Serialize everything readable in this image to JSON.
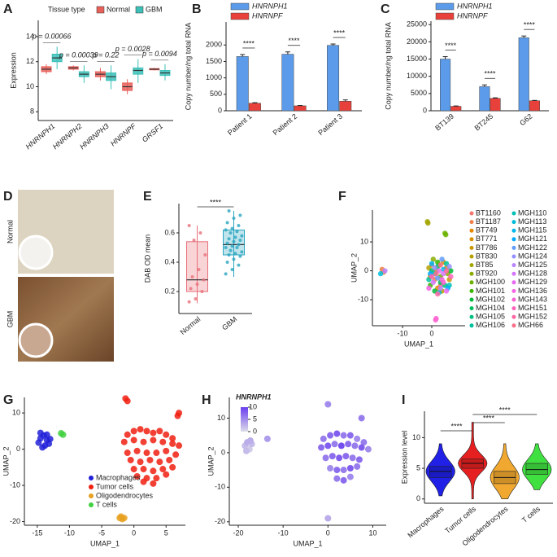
{
  "chart_data": [
    {
      "type": "box",
      "panel": "A",
      "legend_title": "Tissue type",
      "ylabel": "Expression",
      "categories": [
        "HNRNPH1",
        "HNRNPH2",
        "HNRNPH3",
        "HNRNPF",
        "GRSF1"
      ],
      "ylim": [
        7.3,
        15.3
      ],
      "yticks": [
        8,
        10,
        12,
        14
      ],
      "series": [
        {
          "name": "Normal",
          "color": "#e8605a",
          "whisker_low": [
            11.0,
            11.3,
            10.5,
            9.4,
            11.3
          ],
          "q1": [
            11.2,
            11.4,
            10.8,
            9.7,
            11.35
          ],
          "median": [
            11.4,
            11.5,
            11.0,
            10.0,
            11.4
          ],
          "q3": [
            11.6,
            11.6,
            11.2,
            10.3,
            11.45
          ],
          "whisker_high": [
            11.8,
            11.7,
            11.5,
            10.6,
            11.5
          ]
        },
        {
          "name": "GBM",
          "color": "#3cc0b8",
          "whisker_low": [
            11.4,
            10.3,
            9.8,
            10.3,
            10.5
          ],
          "q1": [
            12.0,
            10.8,
            10.5,
            11.0,
            10.9
          ],
          "median": [
            12.3,
            11.0,
            10.8,
            11.3,
            11.1
          ],
          "q3": [
            12.6,
            11.2,
            11.1,
            11.5,
            11.3
          ],
          "whisker_high": [
            13.2,
            11.7,
            11.7,
            12.2,
            11.8
          ]
        }
      ],
      "annotations": [
        "p = 0.00066",
        "p = 0.00039",
        "p = 0.22",
        "p = 0.0028",
        "p = 0.0094"
      ]
    },
    {
      "type": "bar",
      "panel": "B",
      "ylabel": "Copy number/ng total RNA",
      "categories": [
        "Patient 1",
        "Patient 2",
        "Patient 3"
      ],
      "ylim": [
        0,
        2700
      ],
      "yticks": [
        0,
        500,
        1000,
        1500,
        2000
      ],
      "series": [
        {
          "name": "HNRNPH1",
          "color": "#5b9bea",
          "values": [
            1650,
            1720,
            1990
          ],
          "errors": [
            60,
            70,
            40
          ]
        },
        {
          "name": "HNRNPF",
          "color": "#e8403a",
          "values": [
            230,
            150,
            290
          ],
          "errors": [
            15,
            10,
            40
          ]
        }
      ],
      "annotations": [
        "****",
        "****",
        "****"
      ]
    },
    {
      "type": "bar",
      "panel": "C",
      "ylabel": "Copy number/ng total RNA",
      "categories": [
        "BT139",
        "BT245",
        "G62"
      ],
      "ylim": [
        0,
        26000
      ],
      "yticks": [
        0,
        5000,
        10000,
        15000,
        20000,
        25000
      ],
      "series": [
        {
          "name": "HNRNPH1",
          "color": "#5b9bea",
          "values": [
            15000,
            7000,
            21200
          ],
          "errors": [
            700,
            500,
            500
          ]
        },
        {
          "name": "HNRNPF",
          "color": "#e8403a",
          "values": [
            1300,
            3600,
            2900
          ],
          "errors": [
            100,
            150,
            100
          ]
        }
      ],
      "annotations": [
        "****",
        "****",
        "****"
      ]
    },
    {
      "type": "image",
      "panel": "D",
      "labels": [
        "Normal",
        "GBM"
      ]
    },
    {
      "type": "box",
      "panel": "E",
      "ylabel": "DAB OD mean",
      "categories": [
        "Normal",
        "GBM"
      ],
      "colors": [
        "#e8707a",
        "#2aa5c0"
      ],
      "ylim": [
        0.05,
        0.8
      ],
      "yticks": [
        0.2,
        0.4,
        0.6
      ],
      "whisker_low": [
        0.12,
        0.3
      ],
      "q1": [
        0.2,
        0.45
      ],
      "median": [
        0.28,
        0.52
      ],
      "q3": [
        0.54,
        0.62
      ],
      "whisker_high": [
        0.65,
        0.75
      ],
      "points": [
        [
          0.13,
          0.15,
          0.2,
          0.22,
          0.25,
          0.28,
          0.3,
          0.35,
          0.45,
          0.55,
          0.6,
          0.65
        ],
        [
          0.32,
          0.35,
          0.38,
          0.4,
          0.42,
          0.44,
          0.45,
          0.46,
          0.47,
          0.48,
          0.5,
          0.5,
          0.51,
          0.52,
          0.53,
          0.54,
          0.55,
          0.56,
          0.57,
          0.58,
          0.6,
          0.61,
          0.62,
          0.63,
          0.65,
          0.67,
          0.7,
          0.72,
          0.75
        ]
      ],
      "annotations": [
        "****"
      ]
    },
    {
      "type": "scatter",
      "panel": "F",
      "xlabel": "UMAP_1",
      "ylabel": "UMAP_2",
      "legend": "right",
      "xlim": [
        -20.3,
        11.4
      ],
      "xticks": [
        -10,
        0
      ],
      "ylim": [
        -19,
        21
      ],
      "yticks": [
        -10,
        0,
        10
      ],
      "series": [
        {
          "name": "BT1160",
          "color": "#f8766d",
          "x": [
            0,
            3
          ],
          "y": [
            2,
            -5
          ]
        },
        {
          "name": "BT1187",
          "color": "#ef7f47",
          "x": [
            -17,
            -16.5,
            1
          ],
          "y": [
            0.5,
            -0.5,
            -3
          ]
        },
        {
          "name": "BT749",
          "color": "#e58700",
          "x": [
            5,
            2
          ],
          "y": [
            1,
            -6
          ]
        },
        {
          "name": "BT771",
          "color": "#d89000",
          "x": [
            -0.5,
            4
          ],
          "y": [
            -2,
            3
          ]
        },
        {
          "name": "BT786",
          "color": "#c99800",
          "x": [
            1.5,
            6
          ],
          "y": [
            0,
            -3
          ]
        },
        {
          "name": "BT830",
          "color": "#b79f00",
          "x": [
            3.5,
            -1
          ],
          "y": [
            -7,
            1
          ]
        },
        {
          "name": "BT85",
          "color": "#a3a500",
          "x": [
            -1.5,
            -1.3,
            2.5
          ],
          "y": [
            17,
            16.5,
            2
          ]
        },
        {
          "name": "BT920",
          "color": "#8bab00",
          "x": [
            0.5,
            5.5
          ],
          "y": [
            4,
            -1
          ]
        },
        {
          "name": "MGH100",
          "color": "#6bb100",
          "x": [
            4.5,
            4.8,
            3
          ],
          "y": [
            13,
            12.5,
            -2
          ]
        },
        {
          "name": "MGH101",
          "color": "#39b600",
          "x": [
            2,
            -0.5
          ],
          "y": [
            3,
            -5
          ]
        },
        {
          "name": "MGH102",
          "color": "#00ba38",
          "x": [
            6.5,
            1
          ],
          "y": [
            0,
            -7
          ]
        },
        {
          "name": "MGH104",
          "color": "#00bd5c",
          "x": [
            3,
            0
          ],
          "y": [
            -4,
            0
          ]
        },
        {
          "name": "MGH105",
          "color": "#00bf7d",
          "x": [
            4.5,
            2
          ],
          "y": [
            -5,
            1.5
          ]
        },
        {
          "name": "MGH106",
          "color": "#00c19c",
          "x": [
            -1,
            5
          ],
          "y": [
            -3,
            2.5
          ]
        },
        {
          "name": "MGH110",
          "color": "#00c0b8",
          "x": [
            1,
            6
          ],
          "y": [
            -1,
            -5
          ]
        },
        {
          "name": "MGH113",
          "color": "#00bcd8",
          "x": [
            -17.5,
            2.5
          ],
          "y": [
            -1,
            -7.5
          ]
        },
        {
          "name": "MGH115",
          "color": "#00b6eb",
          "x": [
            0,
            4
          ],
          "y": [
            2.5,
            0.5
          ]
        },
        {
          "name": "MGH121",
          "color": "#00abfd",
          "x": [
            5.5,
            -0.5
          ],
          "y": [
            -6,
            -1
          ]
        },
        {
          "name": "MGH122",
          "color": "#619cff",
          "x": [
            2,
            3.5
          ],
          "y": [
            -2.5,
            4
          ]
        },
        {
          "name": "MGH124",
          "color": "#9590ff",
          "x": [
            1,
            6
          ],
          "y": [
            1,
            1.5
          ]
        },
        {
          "name": "MGH125",
          "color": "#b983ff",
          "x": [
            -16,
            3
          ],
          "y": [
            0,
            -6
          ]
        },
        {
          "name": "MGH128",
          "color": "#d575fe",
          "x": [
            4,
            0.5
          ],
          "y": [
            -1,
            -4
          ]
        },
        {
          "name": "MGH129",
          "color": "#e76bf3",
          "x": [
            2.5,
            5
          ],
          "y": [
            0,
            -7
          ]
        },
        {
          "name": "MGH136",
          "color": "#f564e3",
          "x": [
            -1,
            3.5
          ],
          "y": [
            -6,
            -3
          ]
        },
        {
          "name": "MGH143",
          "color": "#fd61d1",
          "x": [
            1.5,
            1.3,
            4
          ],
          "y": [
            -16.5,
            -17,
            -4
          ]
        },
        {
          "name": "MGH151",
          "color": "#ff62bc",
          "x": [
            0,
            6.5
          ],
          "y": [
            -2,
            -2
          ]
        },
        {
          "name": "MGH152",
          "color": "#ff67a4",
          "x": [
            2,
            5
          ],
          "y": [
            -8,
            0
          ]
        },
        {
          "name": "MGH66",
          "color": "#fb7089",
          "x": [
            3,
            1.5
          ],
          "y": [
            2,
            -1
          ]
        }
      ]
    },
    {
      "type": "scatter",
      "panel": "G",
      "xlabel": "UMAP_1",
      "ylabel": "UMAP_2",
      "legend": "lower right",
      "xlim": [
        -17,
        8
      ],
      "xticks": [
        -15,
        -10,
        -5,
        0,
        5
      ],
      "ylim": [
        -21,
        14.3
      ],
      "yticks": [
        -20,
        -10,
        0,
        10
      ],
      "series": [
        {
          "name": "Macrophages",
          "color": "#2020d8",
          "x": [
            -14.5,
            -14,
            -13.5,
            -13.2,
            -14.8,
            -14.2,
            -13.8,
            -13,
            -14.5,
            -13.5
          ],
          "y": [
            3,
            3.8,
            2.5,
            1.5,
            1.8,
            0.5,
            1,
            2.8,
            4.5,
            4
          ]
        },
        {
          "name": "Tumor cells",
          "color": "#f02010",
          "x": [
            -1,
            0,
            1,
            2,
            3,
            4,
            5,
            6,
            -1.5,
            0,
            1.5,
            3,
            4.5,
            6,
            7,
            -1,
            0.5,
            2,
            3.5,
            5,
            6.5,
            -0.5,
            1,
            2.5,
            4,
            5.5,
            0,
            1.5,
            3,
            4.5,
            6,
            0.5,
            2,
            3.5,
            5,
            1.5,
            3,
            -1.3,
            -1,
            7,
            6.8
          ],
          "y": [
            4,
            5,
            5.5,
            5,
            4.5,
            5,
            4,
            3,
            2,
            2.5,
            2,
            2.5,
            2,
            1.5,
            1,
            -1,
            -0.5,
            -1,
            -1,
            -0.5,
            -1.5,
            -3,
            -3.5,
            -3,
            -3.5,
            -3,
            -5.5,
            -5.5,
            -6,
            -5.5,
            -5,
            -7.5,
            -8,
            -8,
            -7,
            -9,
            -9.5,
            14,
            13.3,
            10,
            9.2
          ]
        },
        {
          "name": "Oligodendrocytes",
          "color": "#e8a020",
          "x": [
            -2.2,
            -1.8,
            -2,
            -1.5
          ],
          "y": [
            -19,
            -19.3,
            -18.6,
            -19
          ]
        },
        {
          "name": "T cells",
          "color": "#40d040",
          "x": [
            -11,
            -11.3
          ],
          "y": [
            4,
            4.4
          ]
        }
      ]
    },
    {
      "type": "scatter",
      "panel": "H",
      "xlabel": "UMAP_1",
      "ylabel": "UMAP_2",
      "colorbar_title": "HNRNPH1",
      "clim": [
        0,
        10
      ],
      "cticks": [
        0,
        5,
        10
      ],
      "low_color": "#dcdce8",
      "high_color": "#6a3ef0",
      "xlim": [
        -22,
        13
      ],
      "xticks": [
        -20,
        -10,
        0,
        10
      ],
      "ylim": [
        -21,
        16
      ],
      "yticks": [
        -20,
        -10,
        0,
        10
      ],
      "x": [
        -18.5,
        -18,
        -17.5,
        -17,
        -18.2,
        -17.3,
        -1,
        0.5,
        2,
        3.5,
        5,
        6.5,
        8,
        -1.5,
        0,
        1.5,
        3,
        4.5,
        6,
        7.5,
        9,
        -0.5,
        1,
        2.5,
        4,
        5.5,
        7,
        0.5,
        2,
        3.5,
        5,
        6.5,
        2,
        3.5,
        5,
        0,
        7.5,
        0,
        -13.5
      ],
      "y": [
        2,
        3,
        1,
        2.5,
        0.5,
        3.5,
        4,
        5,
        5.5,
        5,
        5,
        4,
        3,
        1.5,
        2,
        2.5,
        2,
        2.5,
        2,
        1.5,
        1,
        -1.5,
        -1,
        -1.5,
        -1,
        -1.5,
        -2,
        -4.5,
        -5,
        -5,
        -4.5,
        -4,
        -7.5,
        -8,
        -7,
        14,
        10,
        -19,
        4
      ],
      "values": [
        2,
        3,
        1,
        2,
        2,
        3,
        6,
        7,
        8,
        6,
        7,
        5,
        6,
        7,
        8,
        6,
        9,
        7,
        6,
        8,
        5,
        6,
        7,
        8,
        7,
        6,
        7,
        5,
        7,
        6,
        8,
        6,
        6,
        7,
        5,
        5,
        6,
        3,
        4
      ]
    },
    {
      "type": "violin",
      "panel": "I",
      "ylabel": "Expression level",
      "categories": [
        "Macrophages",
        "Tumor cells",
        "Oligodendrocytes",
        "T cells"
      ],
      "colors": [
        "#2020e6",
        "#e62020",
        "#f0a830",
        "#40e040"
      ],
      "ylim": [
        -0.7,
        14.3
      ],
      "yticks": [
        0,
        5,
        10
      ],
      "min": [
        0.5,
        0,
        0,
        1.5
      ],
      "q1": [
        3.5,
        5,
        2.5,
        4
      ],
      "median": [
        4.5,
        5.8,
        3.5,
        4.8
      ],
      "q3": [
        5.3,
        6.5,
        4.5,
        5.8
      ],
      "max": [
        9,
        12.5,
        9,
        9
      ],
      "annotations": [
        "****",
        "****",
        "****"
      ]
    }
  ]
}
